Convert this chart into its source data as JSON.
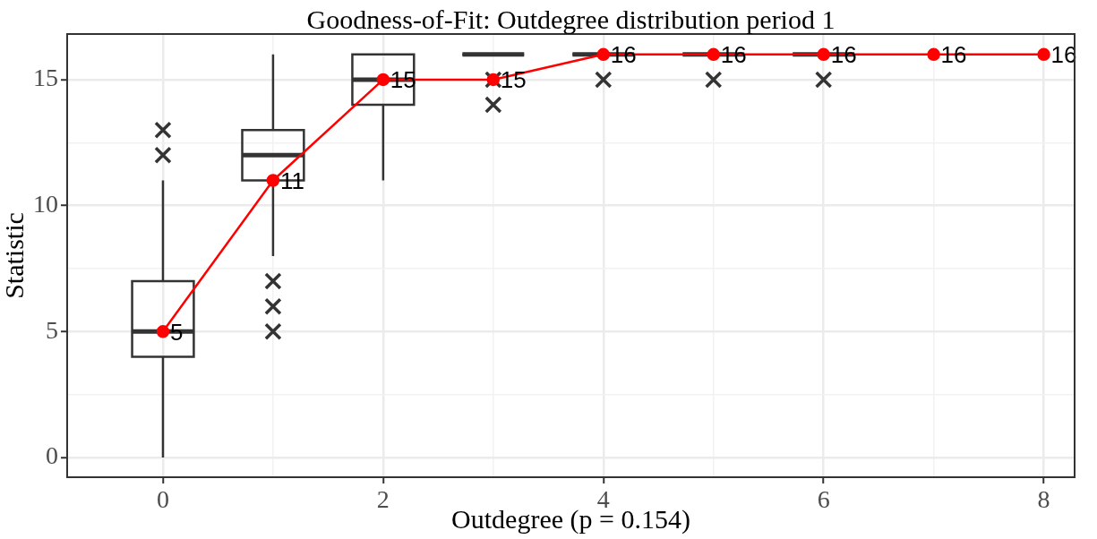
{
  "chart_data": {
    "type": "box",
    "title": "Goodness-of-Fit: Outdegree distribution period 1",
    "xlabel": "Outdegree (p = 0.154)",
    "ylabel": "Statistic",
    "x": [
      0,
      1,
      2,
      3,
      4,
      5,
      6,
      7,
      8
    ],
    "xlim": [
      -0.87,
      8.28
    ],
    "xticks": [
      0,
      {
        "value": 1,
        "label": null
      },
      2,
      {
        "value": 3,
        "label": null
      },
      4,
      {
        "value": 5,
        "label": null
      },
      6,
      {
        "value": 7,
        "label": null
      },
      8
    ],
    "ylim": [
      -0.78,
      16.81
    ],
    "yticks": [
      0,
      {
        "value": 2.5,
        "label": null
      },
      5,
      {
        "value": 7.5,
        "label": null
      },
      10,
      {
        "value": 12.5,
        "label": null
      },
      15
    ],
    "grid": true,
    "legend": false,
    "data_labels": true,
    "series": [
      {
        "type": "box",
        "color": "#333333",
        "boxes": [
          {
            "low": 0,
            "q1": 4,
            "median": 5,
            "q3": 7,
            "high": 11,
            "outliers": [
              12,
              13
            ]
          },
          {
            "low": 8,
            "q1": 11,
            "median": 12,
            "q3": 13,
            "high": 16,
            "outliers": [
              7,
              6,
              5
            ]
          },
          {
            "low": 11,
            "q1": 14,
            "median": 15,
            "q3": 16,
            "high": 16
          },
          {
            "low": 16,
            "q1": 16,
            "median": 16,
            "q3": 16,
            "high": 16,
            "outliers": [
              15,
              14
            ]
          },
          {
            "low": 16,
            "q1": 16,
            "median": 16,
            "q3": 16,
            "high": 16,
            "outliers": [
              15
            ]
          },
          {
            "low": 16,
            "q1": 16,
            "median": 16,
            "q3": 16,
            "high": 16,
            "outliers": [
              15
            ]
          },
          {
            "low": 16,
            "q1": 16,
            "median": 16,
            "q3": 16,
            "high": 16,
            "outliers": [
              15
            ]
          },
          null,
          null
        ]
      },
      {
        "type": "line",
        "color": "#ff0000",
        "marker": "circle",
        "values": [
          5,
          11,
          15,
          15,
          16,
          16,
          16,
          16,
          16
        ]
      }
    ]
  }
}
